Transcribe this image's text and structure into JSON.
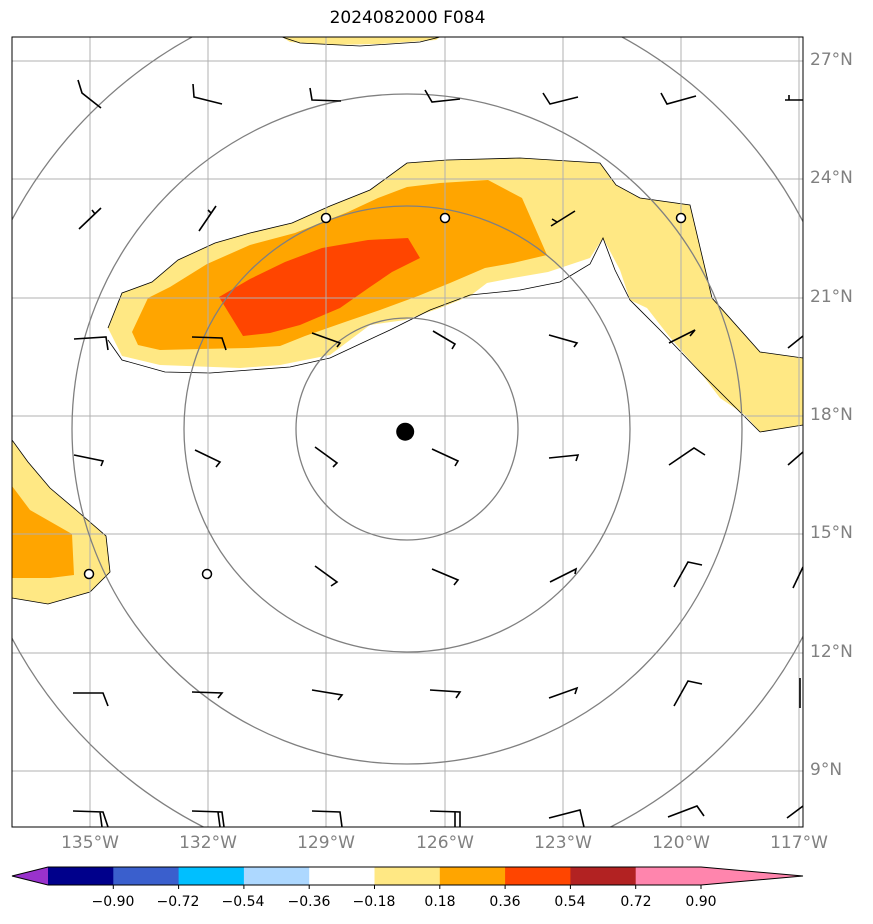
{
  "title": "2024082000 F084",
  "map": {
    "lat_labels": [
      "27°N",
      "24°N",
      "21°N",
      "18°N",
      "15°N",
      "12°N",
      "9°N"
    ],
    "lon_labels": [
      "135°W",
      "132°W",
      "129°W",
      "126°W",
      "123°W",
      "120°W",
      "117°W"
    ],
    "lat_ticks": [
      27,
      24,
      21,
      18,
      15,
      12,
      9
    ],
    "lon_ticks": [
      -135,
      -132,
      -129,
      -126,
      -123,
      -120,
      -117
    ],
    "center_marker": {
      "lon": -127,
      "lat": 17.6
    },
    "range_rings": "concentric circles centred on the storm centre",
    "shading_colors": {
      "0.18-0.36": "#ffe884",
      "0.36-0.54": "#ffa500",
      "0.54-0.72": "#ff4500"
    },
    "wind_barbs": "black barbs on a regular 3-degree grid; small open circles mark calm"
  },
  "colorbar": {
    "labels": [
      "−0.90",
      "−0.72",
      "−0.54",
      "−0.36",
      "−0.18",
      "0.18",
      "0.36",
      "0.54",
      "0.72",
      "0.90"
    ],
    "colors": [
      "#9932cc",
      "#00008b",
      "#3a5fcd",
      "#00bfff",
      "#add8ff",
      "#ffffff",
      "#ffe884",
      "#ffa500",
      "#ff4500",
      "#b22222",
      "#ff85ad",
      "#ff85ad"
    ]
  }
}
